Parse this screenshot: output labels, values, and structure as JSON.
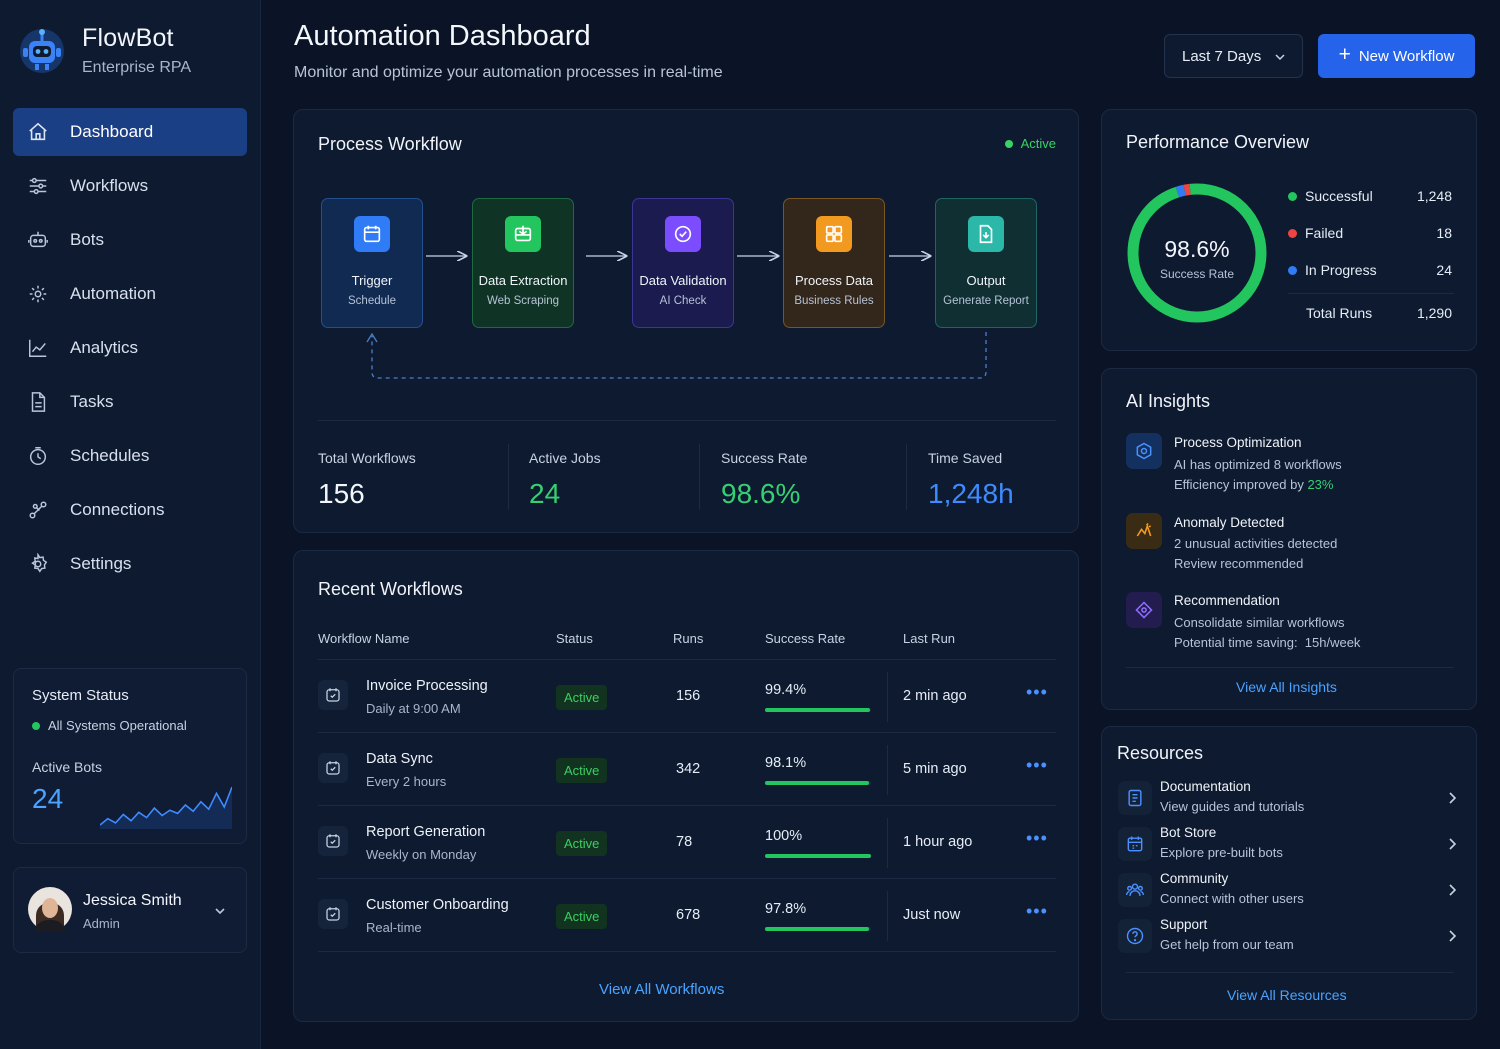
{
  "brand": {
    "name": "FlowBot",
    "subtitle": "Enterprise RPA"
  },
  "nav": [
    {
      "label": "Dashboard",
      "icon": "home-icon",
      "active": true
    },
    {
      "label": "Workflows",
      "icon": "sliders-icon"
    },
    {
      "label": "Bots",
      "icon": "robot-icon"
    },
    {
      "label": "Automation",
      "icon": "gear-cycle-icon"
    },
    {
      "label": "Analytics",
      "icon": "chart-line-icon"
    },
    {
      "label": "Tasks",
      "icon": "document-icon"
    },
    {
      "label": "Schedules",
      "icon": "clock-icon"
    },
    {
      "label": "Connections",
      "icon": "connections-icon"
    },
    {
      "label": "Settings",
      "icon": "settings-icon"
    }
  ],
  "system_status": {
    "title": "System Status",
    "status": "All Systems Operational",
    "active_bots_label": "Active Bots",
    "active_bots": "24",
    "sparkline": [
      8,
      14,
      10,
      18,
      12,
      20,
      15,
      24,
      17,
      22,
      19,
      27,
      21,
      30,
      23,
      38,
      25,
      44
    ]
  },
  "user": {
    "name": "Jessica Smith",
    "role": "Admin"
  },
  "header": {
    "title": "Automation Dashboard",
    "subtitle": "Monitor and optimize your automation processes in real-time",
    "range": "Last 7 Days",
    "new_button": "New Workflow"
  },
  "process_workflow": {
    "title": "Process Workflow",
    "status": "Active",
    "nodes": [
      {
        "title": "Trigger",
        "subtitle": "Schedule",
        "icon": "calendar-icon",
        "color": "#2f7cf6"
      },
      {
        "title": "Data Extraction",
        "subtitle": "Web Scraping",
        "icon": "extract-icon",
        "color": "#22c55e"
      },
      {
        "title": "Data Validation",
        "subtitle": "AI Check",
        "icon": "shield-check-icon",
        "color": "#7c4dff"
      },
      {
        "title": "Process Data",
        "subtitle": "Business Rules",
        "icon": "grid-icon",
        "color": "#f29a1f"
      },
      {
        "title": "Output",
        "subtitle": "Generate Report",
        "icon": "report-icon",
        "color": "#2bb8a8"
      }
    ],
    "stats": [
      {
        "label": "Total Workflows",
        "value": "156",
        "color": "#f2f6fc"
      },
      {
        "label": "Active Jobs",
        "value": "24",
        "color": "#34d073"
      },
      {
        "label": "Success Rate",
        "value": "98.6%",
        "color": "#34d073"
      },
      {
        "label": "Time Saved",
        "value": "1,248h",
        "color": "#3d8bff"
      }
    ]
  },
  "recent_workflows": {
    "title": "Recent Workflows",
    "columns": [
      "Workflow Name",
      "Status",
      "Runs",
      "Success Rate",
      "Last Run"
    ],
    "rows": [
      {
        "name": "Invoice Processing",
        "schedule": "Daily at 9:00 AM",
        "status": "Active",
        "runs": "156",
        "success": "99.4%",
        "success_value": 99.4,
        "last_run": "2 min ago"
      },
      {
        "name": "Data Sync",
        "schedule": "Every 2 hours",
        "status": "Active",
        "runs": "342",
        "success": "98.1%",
        "success_value": 98.1,
        "last_run": "5 min ago"
      },
      {
        "name": "Report Generation",
        "schedule": "Weekly on Monday",
        "status": "Active",
        "runs": "78",
        "success": "100%",
        "success_value": 100,
        "last_run": "1 hour ago"
      },
      {
        "name": "Customer Onboarding",
        "schedule": "Real-time",
        "status": "Active",
        "runs": "678",
        "success": "97.8%",
        "success_value": 97.8,
        "last_run": "Just now"
      }
    ],
    "view_all": "View All Workflows"
  },
  "performance": {
    "title": "Performance Overview",
    "center_value": "98.6%",
    "center_label": "Success Rate",
    "legend": [
      {
        "label": "Successful",
        "value": "1,248",
        "color": "#22c55e",
        "count": 1248
      },
      {
        "label": "Failed",
        "value": "18",
        "color": "#ef4444",
        "count": 18
      },
      {
        "label": "In Progress",
        "value": "24",
        "color": "#2f7cf6",
        "count": 24
      }
    ],
    "total_label": "Total Runs",
    "total_value": "1,290"
  },
  "ai_insights": {
    "title": "AI Insights",
    "items": [
      {
        "title": "Process Optimization",
        "line1": "AI has optimized 8 workflows",
        "line2_prefix": "Efficiency improved by ",
        "line2_highlight": "23%",
        "icon": "target-icon",
        "color": "#2f7cf6"
      },
      {
        "title": "Anomaly Detected",
        "line1": "2 unusual activities detected",
        "line2": "Review recommended",
        "icon": "anomaly-icon",
        "color": "#f29a1f"
      },
      {
        "title": "Recommendation",
        "line1": "Consolidate similar workflows",
        "line2": "Potential time saving:  15h/week",
        "icon": "diamond-icon",
        "color": "#7c4dff"
      }
    ],
    "view_all": "View All Insights"
  },
  "resources": {
    "title": "Resources",
    "items": [
      {
        "title": "Documentation",
        "subtitle": "View guides and tutorials",
        "icon": "doc-icon"
      },
      {
        "title": "Bot Store",
        "subtitle": "Explore pre-built bots",
        "icon": "store-icon"
      },
      {
        "title": "Community",
        "subtitle": "Connect with other users",
        "icon": "community-icon"
      },
      {
        "title": "Support",
        "subtitle": "Get help from our team",
        "icon": "help-icon"
      }
    ],
    "view_all": "View All Resources"
  }
}
